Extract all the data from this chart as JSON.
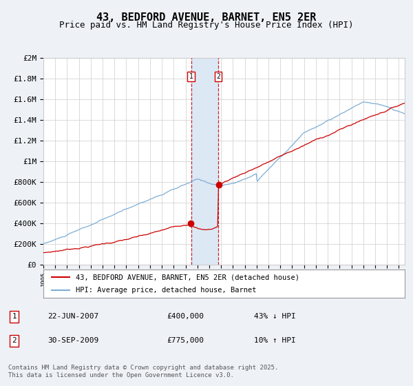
{
  "title": "43, BEDFORD AVENUE, BARNET, EN5 2ER",
  "subtitle": "Price paid vs. HM Land Registry's House Price Index (HPI)",
  "x_start_year": 1995,
  "x_end_year": 2025.5,
  "y_min": 0,
  "y_max": 2000000,
  "y_ticks": [
    0,
    200000,
    400000,
    600000,
    800000,
    1000000,
    1200000,
    1400000,
    1600000,
    1800000,
    2000000
  ],
  "y_tick_labels": [
    "£0",
    "£200K",
    "£400K",
    "£600K",
    "£800K",
    "£1M",
    "£1.2M",
    "£1.4M",
    "£1.6M",
    "£1.8M",
    "£2M"
  ],
  "red_line_color": "#cc0000",
  "blue_line_color": "#7dadd4",
  "transaction1_date": 2007.47,
  "transaction1_price": 400000,
  "transaction2_date": 2009.75,
  "transaction2_price": 775000,
  "vline_color": "#cc0000",
  "shade_color": "#dde8f5",
  "legend_label_red": "43, BEDFORD AVENUE, BARNET, EN5 2ER (detached house)",
  "legend_label_blue": "HPI: Average price, detached house, Barnet",
  "table_row1": [
    "1",
    "22-JUN-2007",
    "£400,000",
    "43% ↓ HPI"
  ],
  "table_row2": [
    "2",
    "30-SEP-2009",
    "£775,000",
    "10% ↑ HPI"
  ],
  "footer": "Contains HM Land Registry data © Crown copyright and database right 2025.\nThis data is licensed under the Open Government Licence v3.0.",
  "background_color": "#eef2f7",
  "plot_bg_color": "#ffffff",
  "grid_color": "#cccccc",
  "title_fontsize": 11,
  "subtitle_fontsize": 9,
  "tick_fontsize": 8
}
